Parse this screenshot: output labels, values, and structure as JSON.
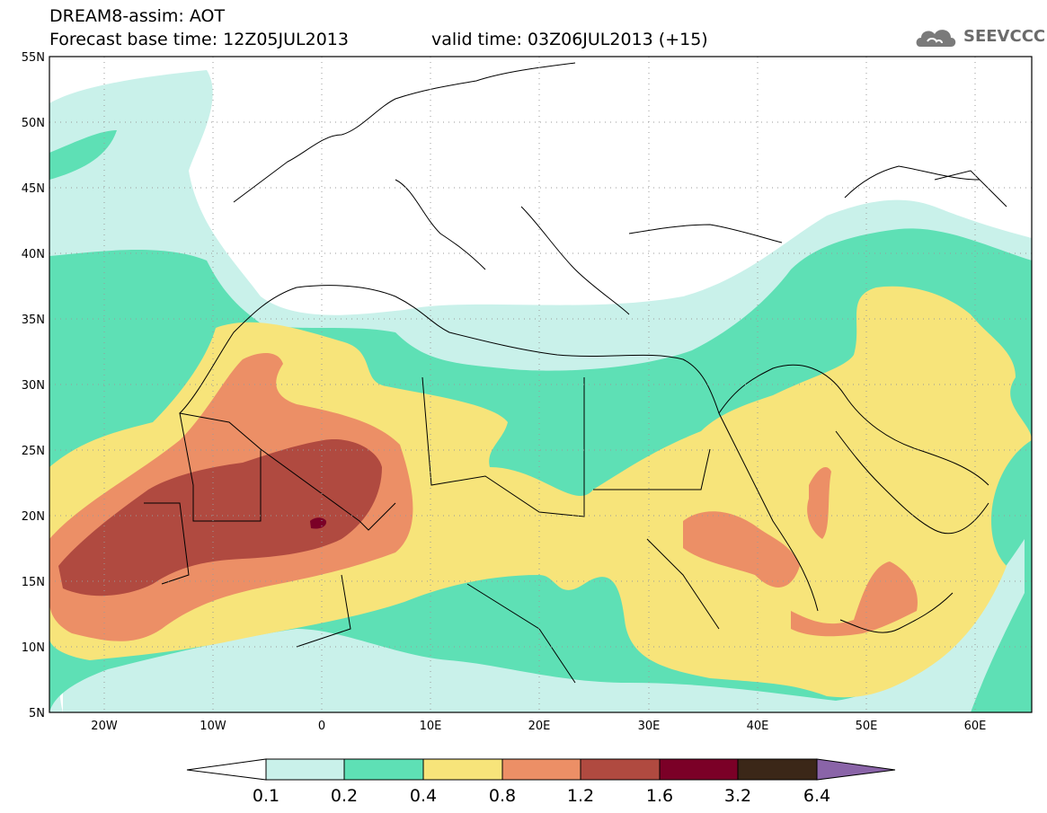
{
  "header": {
    "line1": "DREAM8-assim: AOT",
    "line2": "Forecast base time: 12Z05JUL2013",
    "valid": "valid time: 03Z06JUL2013 (+15)",
    "logo": "SEEVCCC"
  },
  "map": {
    "lon_range": [
      -25,
      65
    ],
    "lat_range": [
      5,
      55
    ],
    "lat_labels": [
      "55N",
      "50N",
      "45N",
      "40N",
      "35N",
      "30N",
      "25N",
      "20N",
      "15N",
      "10N",
      "5N"
    ],
    "lon_labels": [
      "20W",
      "10W",
      "0",
      "10E",
      "20E",
      "30E",
      "40E",
      "50E",
      "60E"
    ],
    "grid": "dotted"
  },
  "colorbar": {
    "levels": [
      "0.1",
      "0.2",
      "0.4",
      "0.8",
      "1.2",
      "1.6",
      "3.2",
      "6.4"
    ],
    "colors": [
      "#ffffff",
      "#c9f1ea",
      "#5ee0b5",
      "#f7e47a",
      "#ec8f66",
      "#b04a40",
      "#7b0027",
      "#3b2718",
      "#8a64a8"
    ]
  },
  "colors": {
    "c01": "#c9f1ea",
    "c02": "#5ee0b5",
    "c04": "#f7e47a",
    "c08": "#ec8f66",
    "c12": "#b04a40",
    "c16": "#7b0027",
    "c32": "#3b2718",
    "c64": "#8a64a8"
  }
}
